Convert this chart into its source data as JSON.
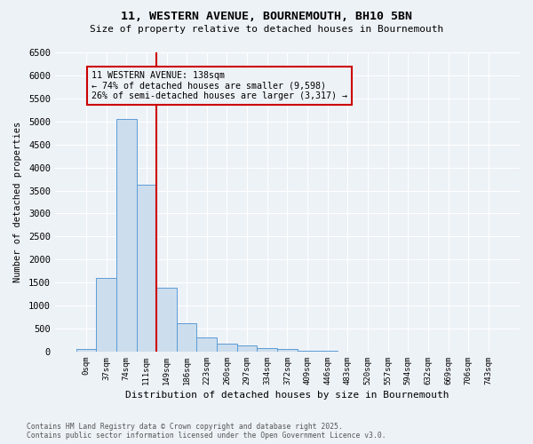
{
  "title_line1": "11, WESTERN AVENUE, BOURNEMOUTH, BH10 5BN",
  "title_line2": "Size of property relative to detached houses in Bournemouth",
  "xlabel": "Distribution of detached houses by size in Bournemouth",
  "ylabel": "Number of detached properties",
  "bin_labels": [
    "0sqm",
    "37sqm",
    "74sqm",
    "111sqm",
    "149sqm",
    "186sqm",
    "223sqm",
    "260sqm",
    "297sqm",
    "334sqm",
    "372sqm",
    "409sqm",
    "446sqm",
    "483sqm",
    "520sqm",
    "557sqm",
    "594sqm",
    "632sqm",
    "669sqm",
    "706sqm",
    "743sqm"
  ],
  "bar_heights": [
    50,
    1600,
    5050,
    3620,
    1380,
    620,
    310,
    170,
    130,
    80,
    50,
    20,
    10,
    5,
    5,
    0,
    0,
    0,
    0,
    0,
    0
  ],
  "bar_color": "#ccdded",
  "bar_edge_color": "#5b9bd5",
  "vline_x": 3.5,
  "vline_color": "#cc0000",
  "annotation_line1": "11 WESTERN AVENUE: 138sqm",
  "annotation_line2": "← 74% of detached houses are smaller (9,598)",
  "annotation_line3": "26% of semi-detached houses are larger (3,317) →",
  "annotation_box_edgecolor": "#cc0000",
  "ylim": [
    0,
    6500
  ],
  "yticks": [
    0,
    500,
    1000,
    1500,
    2000,
    2500,
    3000,
    3500,
    4000,
    4500,
    5000,
    5500,
    6000,
    6500
  ],
  "footer_line1": "Contains HM Land Registry data © Crown copyright and database right 2025.",
  "footer_line2": "Contains public sector information licensed under the Open Government Licence v3.0.",
  "bg_color": "#edf2f7"
}
